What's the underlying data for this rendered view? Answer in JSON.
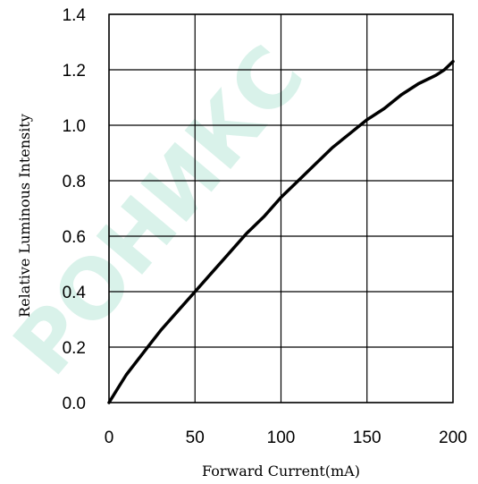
{
  "chart_data": {
    "type": "line",
    "title": "",
    "xlabel": "Forward Current(mA)",
    "ylabel": "Relative Luminous Intensity",
    "xlim": [
      0,
      200
    ],
    "ylim": [
      0,
      1.4
    ],
    "x_ticks": [
      "0",
      "50",
      "100",
      "150",
      "200"
    ],
    "y_ticks": [
      "0.0",
      "0.2",
      "0.4",
      "0.6",
      "0.8",
      "1.0",
      "1.2",
      "1.4"
    ],
    "grid": true,
    "series": [
      {
        "x": [
          0,
          5,
          10,
          15,
          20,
          25,
          30,
          40,
          50,
          60,
          70,
          80,
          90,
          100,
          110,
          120,
          130,
          140,
          150,
          160,
          170,
          180,
          190,
          195,
          200
        ],
        "y": [
          0.0,
          0.05,
          0.1,
          0.14,
          0.18,
          0.22,
          0.26,
          0.33,
          0.4,
          0.47,
          0.54,
          0.61,
          0.67,
          0.74,
          0.8,
          0.86,
          0.92,
          0.97,
          1.02,
          1.06,
          1.11,
          1.15,
          1.18,
          1.2,
          1.23
        ]
      }
    ],
    "line_color": "#000000",
    "watermark_color": "#cdeee3"
  },
  "watermark": {
    "text": "РОНИКС"
  }
}
